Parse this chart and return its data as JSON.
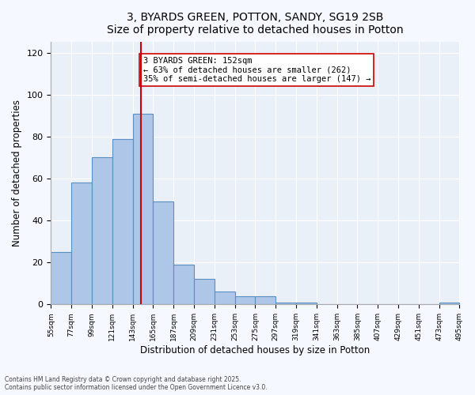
{
  "title_line1": "3, BYARDS GREEN, POTTON, SANDY, SG19 2SB",
  "title_line2": "Size of property relative to detached houses in Potton",
  "xlabel": "Distribution of detached houses by size in Potton",
  "ylabel": "Number of detached properties",
  "bar_edges": [
    55,
    77,
    99,
    121,
    143,
    165,
    187,
    209,
    231,
    253,
    275,
    297,
    319,
    341,
    363,
    385,
    407,
    429,
    451,
    473,
    495
  ],
  "bar_heights": [
    25,
    58,
    70,
    79,
    91,
    49,
    19,
    12,
    6,
    4,
    4,
    1,
    1,
    0,
    0,
    0,
    0,
    0,
    0,
    1
  ],
  "bar_color": "#aec6e8",
  "bar_edge_color": "#5a8fc2",
  "vline_x": 152,
  "vline_color": "#cc0000",
  "annotation_text": "3 BYARDS GREEN: 152sqm\n← 63% of detached houses are smaller (262)\n35% of semi-detached houses are larger (147) →",
  "annotation_box_color": "#ffffff",
  "annotation_border_color": "#cc0000",
  "ylim": [
    0,
    125
  ],
  "yticks": [
    0,
    20,
    40,
    60,
    80,
    100,
    120
  ],
  "bg_color": "#eaf0f8",
  "footer_text": "Contains HM Land Registry data © Crown copyright and database right 2025.\nContains public sector information licensed under the Open Government Licence v3.0.",
  "tick_labels": [
    "55sqm",
    "77sqm",
    "99sqm",
    "121sqm",
    "143sqm",
    "165sqm",
    "187sqm",
    "209sqm",
    "231sqm",
    "253sqm",
    "275sqm",
    "297sqm",
    "319sqm",
    "341sqm",
    "363sqm",
    "385sqm",
    "407sqm",
    "429sqm",
    "451sqm",
    "473sqm",
    "495sqm"
  ]
}
